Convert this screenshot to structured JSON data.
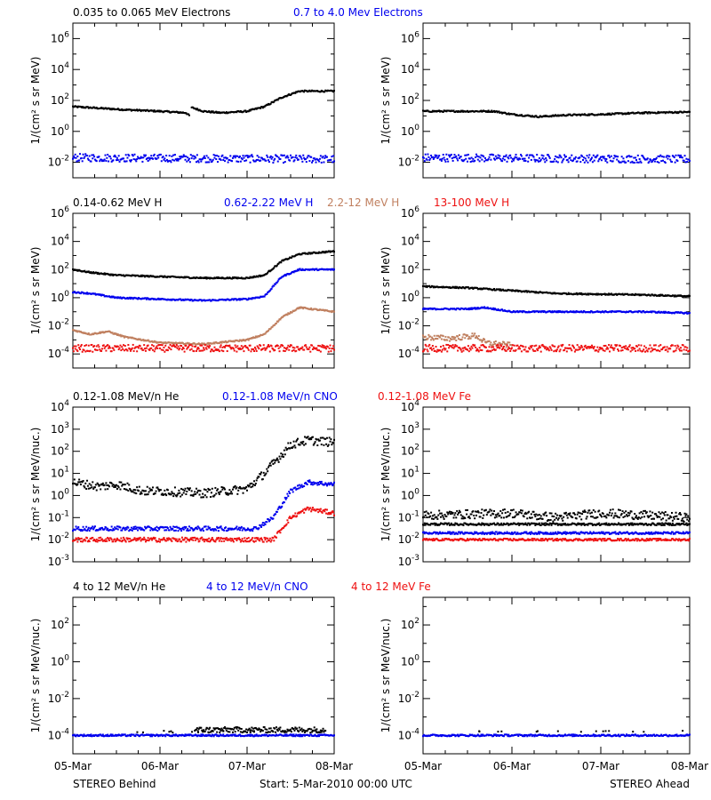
{
  "colors": {
    "black": "#000000",
    "blue": "#0000ee",
    "tan": "#c08060",
    "red": "#ee1111"
  },
  "footer": {
    "left": "STEREO Behind",
    "center": "Start:  5-Mar-2010 00:00 UTC",
    "right": "STEREO Ahead"
  },
  "chart_data": [
    {
      "type": "scatter",
      "panel": "electrons",
      "legend": [
        {
          "name": "0.035 to 0.065 MeV Electrons",
          "color": "black"
        },
        {
          "name": "0.7 to 4.0 Mev Electrons",
          "color": "blue"
        }
      ],
      "ylabel": "1/(cm² s sr MeV)",
      "ylim_log10": [
        -3,
        7
      ],
      "y_tick_exponents": [
        -2,
        0,
        2,
        4,
        6
      ],
      "x_tick_labels": [
        "05-Mar",
        "06-Mar",
        "07-Mar",
        "08-Mar"
      ],
      "xlim_days": [
        0,
        3
      ],
      "behind": [
        {
          "color": "black",
          "t": [
            0,
            0.3,
            0.6,
            1.0,
            1.3,
            1.34,
            1.36,
            1.5,
            1.7,
            2.0,
            2.2,
            2.4,
            2.6,
            3.0
          ],
          "log_y": [
            1.6,
            1.5,
            1.4,
            1.3,
            1.2,
            1.0,
            1.55,
            1.3,
            1.2,
            1.3,
            1.6,
            2.2,
            2.6,
            2.6
          ],
          "gap": [
            1.34,
            1.36
          ]
        },
        {
          "color": "blue",
          "t": [
            0,
            3.0
          ],
          "log_y": [
            -1.7,
            -1.8
          ],
          "scatter": 0.25
        }
      ],
      "ahead": [
        {
          "color": "black",
          "t": [
            0,
            0.6,
            0.8,
            1.0,
            1.3,
            1.6,
            2.0,
            2.5,
            3.0
          ],
          "log_y": [
            1.3,
            1.3,
            1.3,
            1.1,
            0.95,
            1.05,
            1.1,
            1.2,
            1.25
          ]
        },
        {
          "color": "blue",
          "t": [
            0,
            3.0
          ],
          "log_y": [
            -1.7,
            -1.8
          ],
          "scatter": 0.25
        }
      ]
    },
    {
      "type": "scatter",
      "panel": "protons",
      "legend": [
        {
          "name": "0.14-0.62 MeV H",
          "color": "black"
        },
        {
          "name": "0.62-2.22 MeV H",
          "color": "blue"
        },
        {
          "name": "2.2-12 MeV H",
          "color": "tan"
        },
        {
          "name": "13-100 MeV H",
          "color": "red"
        }
      ],
      "ylabel": "1/(cm² s sr MeV)",
      "ylim_log10": [
        -5,
        6
      ],
      "y_tick_exponents": [
        -4,
        -2,
        0,
        2,
        4,
        6
      ],
      "x_tick_labels": [
        "05-Mar",
        "06-Mar",
        "07-Mar",
        "08-Mar"
      ],
      "xlim_days": [
        0,
        3
      ],
      "behind": [
        {
          "color": "black",
          "t": [
            0,
            0.2,
            0.5,
            1.0,
            1.5,
            2.0,
            2.2,
            2.4,
            2.6,
            3.0
          ],
          "log_y": [
            2.0,
            1.8,
            1.6,
            1.5,
            1.4,
            1.4,
            1.6,
            2.6,
            3.1,
            3.3
          ]
        },
        {
          "color": "blue",
          "t": [
            0,
            0.2,
            0.5,
            1.0,
            1.5,
            2.0,
            2.2,
            2.4,
            2.6,
            3.0
          ],
          "log_y": [
            0.4,
            0.3,
            0.0,
            -0.1,
            -0.2,
            -0.1,
            0.1,
            1.5,
            2.0,
            2.0
          ]
        },
        {
          "color": "tan",
          "t": [
            0,
            0.2,
            0.4,
            0.6,
            1.0,
            1.5,
            2.0,
            2.2,
            2.4,
            2.6,
            3.0
          ],
          "log_y": [
            -2.3,
            -2.6,
            -2.4,
            -2.8,
            -3.2,
            -3.3,
            -3.0,
            -2.6,
            -1.4,
            -0.7,
            -1.0
          ]
        },
        {
          "color": "red",
          "t": [
            0,
            3.0
          ],
          "log_y": [
            -3.6,
            -3.6
          ],
          "scatter": 0.25
        }
      ],
      "ahead": [
        {
          "color": "black",
          "t": [
            0,
            0.5,
            1.0,
            1.5,
            2.0,
            2.5,
            3.0
          ],
          "log_y": [
            0.8,
            0.7,
            0.5,
            0.3,
            0.25,
            0.2,
            0.1
          ]
        },
        {
          "color": "blue",
          "t": [
            0,
            0.5,
            0.7,
            1.0,
            1.5,
            2.0,
            2.5,
            3.0
          ],
          "log_y": [
            -0.8,
            -0.8,
            -0.7,
            -1.0,
            -1.0,
            -1.0,
            -1.0,
            -1.1
          ]
        },
        {
          "color": "tan",
          "t": [
            0,
            0.3,
            0.6,
            0.7,
            1.0
          ],
          "log_y": [
            -2.8,
            -2.9,
            -2.7,
            -3.2,
            -3.4
          ],
          "scatter": 0.2
        },
        {
          "color": "red",
          "t": [
            0,
            3.0
          ],
          "log_y": [
            -3.6,
            -3.6
          ],
          "scatter": 0.25
        }
      ]
    },
    {
      "type": "scatter",
      "panel": "ions_low",
      "legend": [
        {
          "name": "0.12-1.08 MeV/n He",
          "color": "black"
        },
        {
          "name": "0.12-1.08 MeV/n CNO",
          "color": "blue"
        },
        {
          "name": "0.12-1.08 MeV Fe",
          "color": "red"
        }
      ],
      "ylabel": "1/(cm² s sr MeV/nuc.)",
      "ylim_log10": [
        -3,
        4
      ],
      "y_tick_exponents": [
        -3,
        -2,
        -1,
        0,
        1,
        2,
        3,
        4
      ],
      "x_tick_labels": [
        "05-Mar",
        "06-Mar",
        "07-Mar",
        "08-Mar"
      ],
      "xlim_days": [
        0,
        3
      ],
      "behind": [
        {
          "color": "black",
          "t": [
            0,
            0.3,
            0.5,
            0.8,
            1.0,
            1.5,
            2.0,
            2.2,
            2.5,
            2.7,
            3.0
          ],
          "log_y": [
            0.6,
            0.4,
            0.5,
            0.2,
            0.2,
            0.1,
            0.3,
            1.0,
            2.3,
            2.5,
            2.4
          ],
          "scatter": 0.2
        },
        {
          "color": "blue",
          "t": [
            0,
            2.1,
            2.3,
            2.5,
            2.7,
            3.0
          ],
          "log_y": [
            -1.5,
            -1.5,
            -1.0,
            0.2,
            0.6,
            0.5
          ],
          "scatter": 0.1
        },
        {
          "color": "red",
          "t": [
            0,
            2.3,
            2.5,
            2.7,
            3.0
          ],
          "log_y": [
            -2.0,
            -2.0,
            -1.0,
            -0.6,
            -0.8
          ],
          "scatter": 0.1
        }
      ],
      "ahead": [
        {
          "color": "black",
          "t": [
            0,
            3.0
          ],
          "log_y": [
            -1.3,
            -1.3
          ]
        },
        {
          "color": "black",
          "t": [
            0,
            1.0,
            1.5,
            2.0,
            2.5,
            3.0
          ],
          "log_y": [
            -0.9,
            -0.8,
            -1.0,
            -0.8,
            -0.9,
            -1.0
          ],
          "scatter": 0.2
        },
        {
          "color": "blue",
          "t": [
            0,
            3.0
          ],
          "log_y": [
            -1.7,
            -1.7
          ]
        },
        {
          "color": "red",
          "t": [
            0,
            3.0
          ],
          "log_y": [
            -2.0,
            -2.0
          ]
        }
      ]
    },
    {
      "type": "scatter",
      "panel": "ions_high",
      "legend": [
        {
          "name": "4 to 12 MeV/n He",
          "color": "black"
        },
        {
          "name": "4 to 12 MeV/n CNO",
          "color": "blue"
        },
        {
          "name": "4 to 12 MeV Fe",
          "color": "red"
        }
      ],
      "ylabel": "1/(cm² s sr MeV/nuc.)",
      "ylim_log10": [
        -5,
        3.5
      ],
      "y_tick_exponents": [
        -4,
        -2,
        0,
        2
      ],
      "x_tick_labels": [
        "05-Mar",
        "06-Mar",
        "07-Mar",
        "08-Mar"
      ],
      "xlim_days": [
        0,
        3
      ],
      "behind": [
        {
          "color": "blue",
          "t": [
            0,
            3.0
          ],
          "log_y": [
            -4.0,
            -4.0
          ]
        },
        {
          "color": "black",
          "t": [
            1.4,
            2.9
          ],
          "log_y": [
            -3.7,
            -3.7
          ],
          "scatter": 0.15
        },
        {
          "color": "black",
          "t": [
            0.5,
            3.0
          ],
          "log_y": [
            -3.8,
            -3.8
          ],
          "sparse": true
        }
      ],
      "ahead": [
        {
          "color": "blue",
          "t": [
            0,
            3.0
          ],
          "log_y": [
            -4.0,
            -4.0
          ]
        },
        {
          "color": "black",
          "t": [
            0.5,
            3.0
          ],
          "log_y": [
            -3.8,
            -3.8
          ],
          "sparse": true
        }
      ]
    }
  ]
}
